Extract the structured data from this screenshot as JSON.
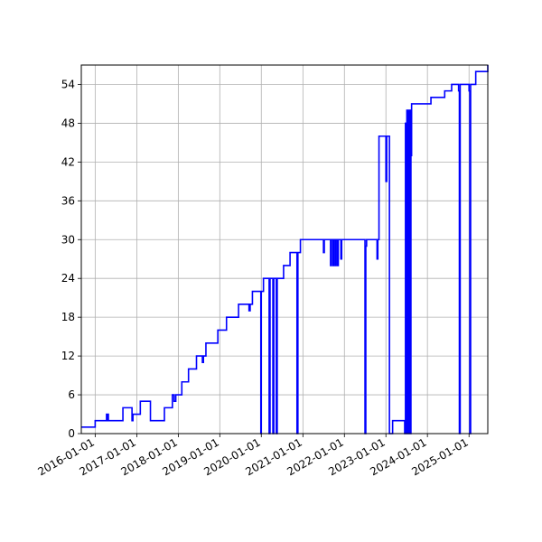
{
  "chart_data": {
    "type": "line",
    "title": "",
    "xlabel": "",
    "ylabel": "",
    "x_axis": {
      "scale": "date",
      "range": [
        "2015-09-01",
        "2025-06-15"
      ],
      "ticks": [
        "2016-01-01",
        "2017-01-01",
        "2018-01-01",
        "2019-01-01",
        "2020-01-01",
        "2021-01-01",
        "2022-01-01",
        "2023-01-01",
        "2024-01-01",
        "2025-01-01"
      ]
    },
    "y_axis": {
      "range": [
        0,
        57
      ],
      "ticks": [
        0,
        6,
        12,
        18,
        24,
        30,
        36,
        42,
        48,
        54
      ]
    },
    "grid": true,
    "legend": "none",
    "series": [
      {
        "color": "#0000ff",
        "step": true,
        "points": [
          [
            "2015-09-01",
            1
          ],
          [
            "2016-01-01",
            2
          ],
          [
            "2016-04-10",
            3
          ],
          [
            "2016-04-14",
            2
          ],
          [
            "2016-04-20",
            3
          ],
          [
            "2016-04-26",
            2
          ],
          [
            "2016-08-01",
            2
          ],
          [
            "2016-09-01",
            4
          ],
          [
            "2016-11-20",
            2
          ],
          [
            "2016-11-28",
            3
          ],
          [
            "2017-02-01",
            5
          ],
          [
            "2017-05-01",
            2
          ],
          [
            "2017-09-01",
            4
          ],
          [
            "2017-11-10",
            6
          ],
          [
            "2017-11-25",
            5
          ],
          [
            "2017-12-10",
            6
          ],
          [
            "2018-02-01",
            8
          ],
          [
            "2018-04-01",
            10
          ],
          [
            "2018-06-10",
            12
          ],
          [
            "2018-08-01",
            11
          ],
          [
            "2018-08-10",
            12
          ],
          [
            "2018-09-01",
            14
          ],
          [
            "2018-12-15",
            16
          ],
          [
            "2019-03-01",
            18
          ],
          [
            "2019-06-15",
            20
          ],
          [
            "2019-09-15",
            19
          ],
          [
            "2019-09-25",
            20
          ],
          [
            "2019-10-15",
            22
          ],
          [
            "2019-12-28",
            0
          ],
          [
            "2020-01-01",
            22
          ],
          [
            "2020-01-20",
            24
          ],
          [
            "2020-03-10",
            0
          ],
          [
            "2020-03-18",
            24
          ],
          [
            "2020-04-12",
            0
          ],
          [
            "2020-04-20",
            24
          ],
          [
            "2020-05-12",
            0
          ],
          [
            "2020-05-20",
            24
          ],
          [
            "2020-07-15",
            26
          ],
          [
            "2020-09-10",
            28
          ],
          [
            "2020-11-10",
            0
          ],
          [
            "2020-11-18",
            28
          ],
          [
            "2020-12-10",
            30
          ],
          [
            "2021-07-01",
            28
          ],
          [
            "2021-07-08",
            30
          ],
          [
            "2021-09-01",
            26
          ],
          [
            "2021-09-08",
            30
          ],
          [
            "2021-09-22",
            26
          ],
          [
            "2021-09-29",
            30
          ],
          [
            "2021-10-12",
            26
          ],
          [
            "2021-10-19",
            30
          ],
          [
            "2021-11-01",
            26
          ],
          [
            "2021-11-08",
            30
          ],
          [
            "2021-12-01",
            27
          ],
          [
            "2021-12-08",
            30
          ],
          [
            "2022-07-01",
            0
          ],
          [
            "2022-07-08",
            29
          ],
          [
            "2022-07-15",
            30
          ],
          [
            "2022-10-15",
            27
          ],
          [
            "2022-10-22",
            30
          ],
          [
            "2022-11-01",
            46
          ],
          [
            "2023-01-01",
            39
          ],
          [
            "2023-01-08",
            46
          ],
          [
            "2023-02-01",
            0
          ],
          [
            "2023-03-01",
            2
          ],
          [
            "2023-06-15",
            0
          ],
          [
            "2023-06-22",
            48
          ],
          [
            "2023-06-28",
            0
          ],
          [
            "2023-07-04",
            50
          ],
          [
            "2023-07-10",
            0
          ],
          [
            "2023-07-16",
            50
          ],
          [
            "2023-07-22",
            0
          ],
          [
            "2023-07-28",
            50
          ],
          [
            "2023-08-03",
            0
          ],
          [
            "2023-08-09",
            43
          ],
          [
            "2023-08-15",
            51
          ],
          [
            "2024-02-01",
            52
          ],
          [
            "2024-06-01",
            53
          ],
          [
            "2024-08-01",
            54
          ],
          [
            "2024-10-01",
            53
          ],
          [
            "2024-10-08",
            0
          ],
          [
            "2024-10-15",
            54
          ],
          [
            "2025-01-01",
            53
          ],
          [
            "2025-01-08",
            0
          ],
          [
            "2025-01-15",
            54
          ],
          [
            "2025-03-01",
            56
          ],
          [
            "2025-06-15",
            57
          ]
        ]
      }
    ]
  }
}
